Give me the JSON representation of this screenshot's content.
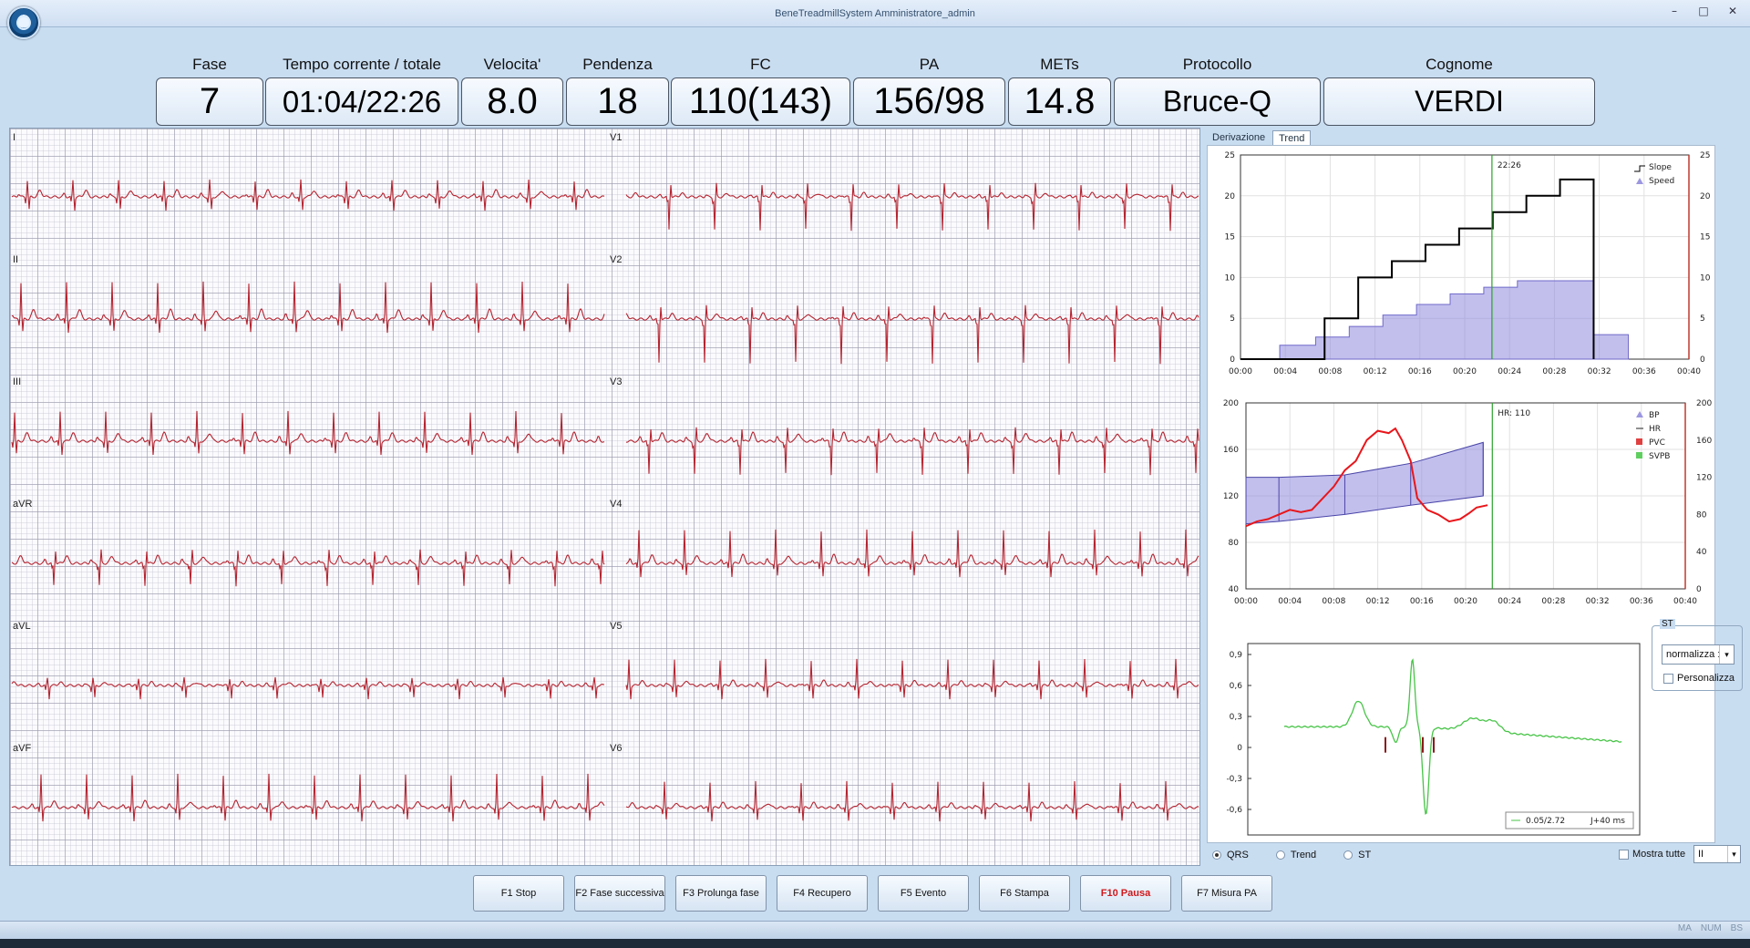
{
  "window": {
    "title": "BeneTreadmillSystem Amministratore_admin",
    "controls": [
      "–",
      "□",
      "✕"
    ]
  },
  "readouts": [
    {
      "label": "Fase",
      "value": "7"
    },
    {
      "label": "Tempo corrente / totale",
      "value": "01:04/22:26"
    },
    {
      "label": "Velocita'",
      "value": "8.0"
    },
    {
      "label": "Pendenza",
      "value": "18"
    },
    {
      "label": "FC",
      "value": "110(143)"
    },
    {
      "label": "PA",
      "value": "156/98"
    },
    {
      "label": "METs",
      "value": "14.8"
    },
    {
      "label": "Protocollo",
      "value": "Bruce-Q"
    },
    {
      "label": "Cognome",
      "value": "VERDI"
    }
  ],
  "ecg": {
    "leads_left": [
      "I",
      "II",
      "III",
      "aVR",
      "aVL",
      "aVF"
    ],
    "leads_right": [
      "V1",
      "V2",
      "V3",
      "V4",
      "V5",
      "V6"
    ],
    "trace_color": "#b4232f"
  },
  "right_panel": {
    "tabs": [
      "Derivazione",
      "Trend"
    ],
    "active_tab": "Trend"
  },
  "chart_data": [
    {
      "type": "line",
      "x": [
        "00:00",
        "00:04",
        "00:08",
        "00:12",
        "00:16",
        "00:20",
        "00:24",
        "00:28",
        "00:32",
        "00:36",
        "00:40"
      ],
      "ylim": [
        0,
        25
      ],
      "yticks": [
        0,
        5,
        10,
        15,
        20,
        25
      ],
      "marker_label": "22:26",
      "legend": [
        "Slope",
        "Speed"
      ],
      "series": [
        {
          "name": "Slope",
          "values": [
            [
              0,
              0
            ],
            [
              7.5,
              0
            ],
            [
              7.5,
              5
            ],
            [
              10.5,
              5
            ],
            [
              10.5,
              10
            ],
            [
              13.5,
              10
            ],
            [
              13.5,
              12
            ],
            [
              16.5,
              12
            ],
            [
              16.5,
              14
            ],
            [
              19.5,
              14
            ],
            [
              19.5,
              16
            ],
            [
              22.5,
              16
            ],
            [
              22.5,
              18
            ],
            [
              25.5,
              18
            ],
            [
              25.5,
              20
            ],
            [
              28.5,
              20
            ],
            [
              28.5,
              22
            ],
            [
              31.5,
              22
            ],
            [
              31.5,
              0
            ]
          ],
          "color": "#000000"
        },
        {
          "name": "Speed",
          "values": [
            [
              3.5,
              1.7
            ],
            [
              6.7,
              1.7
            ],
            [
              6.7,
              2.7
            ],
            [
              9.7,
              2.7
            ],
            [
              9.7,
              4
            ],
            [
              12.7,
              4
            ],
            [
              12.7,
              5.4
            ],
            [
              15.7,
              5.4
            ],
            [
              15.7,
              6.7
            ],
            [
              18.7,
              6.7
            ],
            [
              18.7,
              8
            ],
            [
              21.7,
              8
            ],
            [
              21.7,
              8.8
            ],
            [
              24.7,
              8.8
            ],
            [
              24.7,
              9.6
            ],
            [
              31.5,
              9.6
            ],
            [
              31.5,
              3
            ],
            [
              34.6,
              3
            ],
            [
              34.6,
              0
            ]
          ],
          "color": "#7a74d2"
        }
      ]
    },
    {
      "type": "line",
      "x": [
        "00:00",
        "00:04",
        "00:08",
        "00:12",
        "00:16",
        "00:20",
        "00:24",
        "00:28",
        "00:32",
        "00:36",
        "00:40"
      ],
      "ylim": [
        40,
        200
      ],
      "yticks_left": [
        40,
        80,
        120,
        160,
        200
      ],
      "yticks_right": [
        0,
        40,
        80,
        120,
        160,
        200
      ],
      "marker_label": "HR: 110",
      "legend": [
        "BP",
        "HR",
        "PVC",
        "SVPB"
      ],
      "series": [
        {
          "name": "BP",
          "values": [
            [
              0,
              96,
              136
            ],
            [
              3,
              98,
              136
            ],
            [
              9,
              104,
              138
            ],
            [
              15,
              112,
              148
            ],
            [
              21.6,
              120,
              166
            ]
          ],
          "color": "#7a74d2"
        },
        {
          "name": "HR",
          "values": [
            [
              0,
              94
            ],
            [
              1,
              98
            ],
            [
              2,
              100
            ],
            [
              3,
              104
            ],
            [
              4,
              108
            ],
            [
              5,
              106
            ],
            [
              6,
              108
            ],
            [
              7,
              118
            ],
            [
              8,
              128
            ],
            [
              9,
              142
            ],
            [
              10,
              150
            ],
            [
              11,
              168
            ],
            [
              12,
              176
            ],
            [
              13,
              174
            ],
            [
              13.6,
              178
            ],
            [
              14.2,
              168
            ],
            [
              15,
              150
            ],
            [
              15.6,
              118
            ],
            [
              16.5,
              108
            ],
            [
              17.5,
              104
            ],
            [
              18.5,
              98
            ],
            [
              19.5,
              100
            ],
            [
              20.3,
              105
            ],
            [
              21,
              110
            ],
            [
              22,
              112
            ]
          ],
          "color": "#e8161b"
        }
      ]
    },
    {
      "type": "line",
      "title": "ST",
      "ylim": [
        -0.75,
        0.95
      ],
      "yticks": [
        "0,9",
        "0,6",
        "0,3",
        "0",
        "-0,3",
        "-0,6"
      ],
      "legend": [
        "0.05/2.72",
        "J+40 ms"
      ],
      "series": [
        {
          "name": "0.05/2.72",
          "values": [],
          "color": "#2aa52a"
        }
      ]
    }
  ],
  "st_options": {
    "group_label": "ST",
    "select_value": "normalizza :",
    "personalizza": "Personalizza"
  },
  "view_options": [
    {
      "label": "QRS",
      "checked": true
    },
    {
      "label": "Trend",
      "checked": false
    },
    {
      "label": "ST",
      "checked": false
    }
  ],
  "mostra_tutte": {
    "label": "Mostra tutte",
    "lead": "II"
  },
  "function_buttons": [
    "F1 Stop",
    "F2 Fase successiva",
    "F3 Prolunga fase",
    "F4 Recupero",
    "F5 Evento",
    "F6 Stampa",
    "F10 Pausa",
    "F7 Misura PA"
  ],
  "status": [
    "MA",
    "NUM",
    "BS"
  ]
}
